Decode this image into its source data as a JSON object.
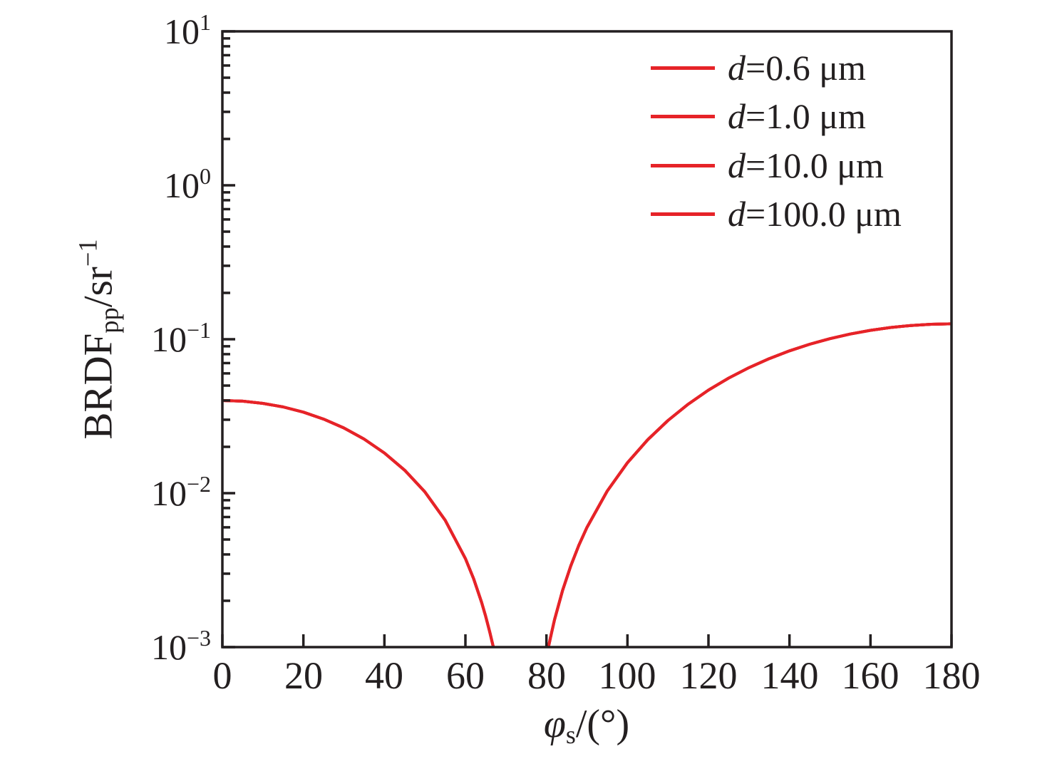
{
  "figure": {
    "bg": "#ffffff",
    "ink": "#231f20"
  },
  "chart_data": {
    "type": "line",
    "x_axis": {
      "label": {
        "var": "φ",
        "sub": "s",
        "rest": "/(°)"
      },
      "ticks": [
        "0",
        "20",
        "40",
        "60",
        "80",
        "100",
        "120",
        "140",
        "160",
        "180"
      ],
      "range": [
        0,
        180
      ]
    },
    "y_axis": {
      "label": {
        "main": "BRDF",
        "sub": "pp",
        "rest": "/sr",
        "sup": "−1"
      },
      "scale": "log",
      "range": [
        0.001,
        10
      ],
      "tick_labels": [
        {
          "base": "10",
          "exp": "1",
          "value": 10
        },
        {
          "base": "10",
          "exp": "0",
          "value": 1
        },
        {
          "base": "10",
          "exp": "−1",
          "value": 0.1
        },
        {
          "base": "10",
          "exp": "−2",
          "value": 0.01
        },
        {
          "base": "10",
          "exp": "−3",
          "value": 0.001
        }
      ]
    },
    "legend": {
      "position": "top-right",
      "entries": [
        {
          "var": "d",
          "rest": "=0.6 μm",
          "color": "#e62328"
        },
        {
          "var": "d",
          "rest": "=1.0 μm",
          "color": "#e62328"
        },
        {
          "var": "d",
          "rest": "=10.0 μm",
          "color": "#e62328"
        },
        {
          "var": "d",
          "rest": "=100.0 μm",
          "color": "#e62328"
        }
      ]
    },
    "curves_overlap": true,
    "shared_curve": {
      "segments": [
        {
          "x": [
            0,
            5,
            10,
            15,
            20,
            25,
            30,
            35,
            40,
            45,
            50,
            55,
            60,
            62,
            64,
            65,
            66,
            66.9
          ],
          "y": [
            0.04,
            0.03958,
            0.03833,
            0.03631,
            0.03359,
            0.03028,
            0.02651,
            0.02245,
            0.01825,
            0.0141,
            0.01018,
            0.006677,
            0.003758,
            0.002792,
            0.001954,
            0.001587,
            0.001256,
            0.001
          ]
        },
        {
          "x": [
            80.5,
            81,
            82,
            84,
            86,
            88,
            90,
            95,
            100,
            105,
            110,
            115,
            120,
            125,
            130,
            135,
            140,
            145,
            150,
            155,
            160,
            165,
            170,
            175,
            180
          ],
          "y": [
            0.001,
            0.001156,
            0.001504,
            0.002342,
            0.003368,
            0.004584,
            0.005989,
            0.010315,
            0.015764,
            0.022254,
            0.029672,
            0.037874,
            0.046689,
            0.055925,
            0.065374,
            0.074815,
            0.084026,
            0.092783,
            0.100873,
            0.108095,
            0.11427,
            0.119243,
            0.122887,
            0.125112,
            0.12586
          ]
        }
      ]
    }
  }
}
